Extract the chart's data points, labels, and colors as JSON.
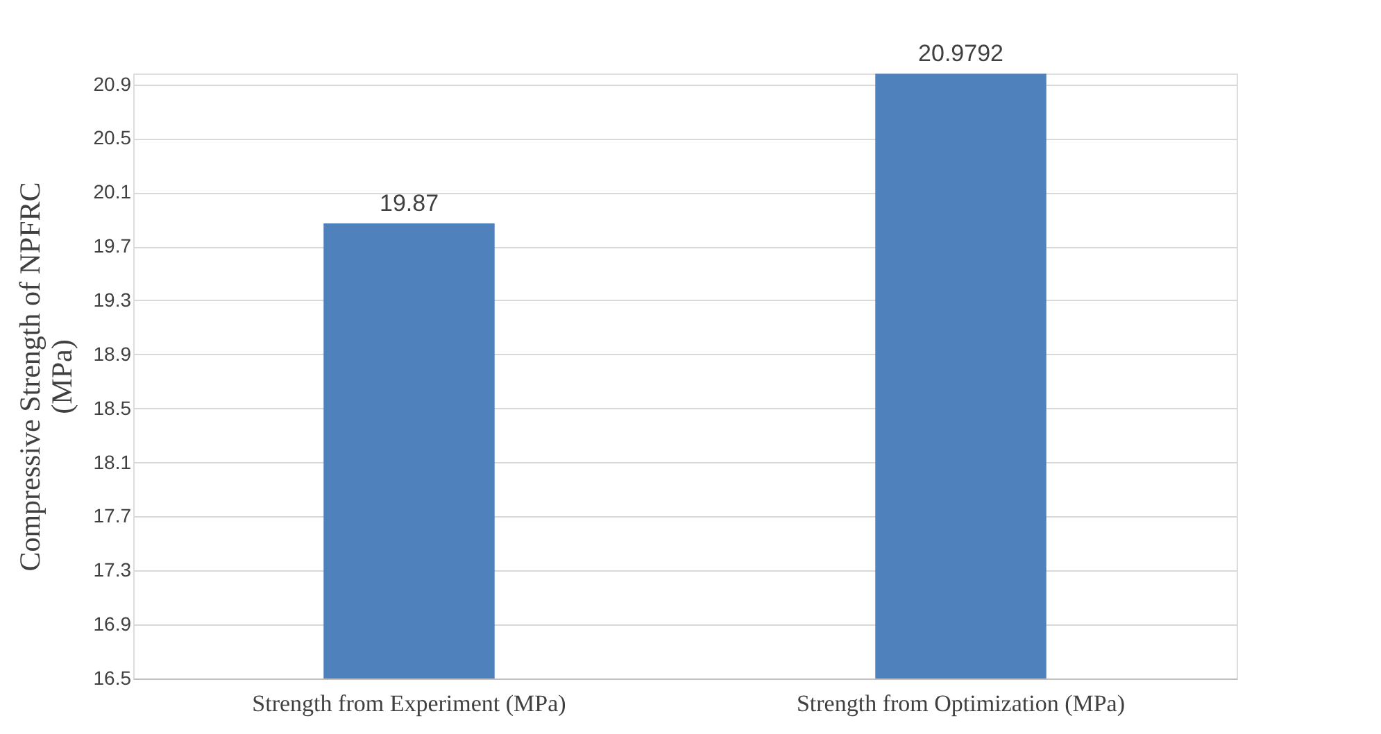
{
  "chart_data": {
    "type": "bar",
    "ylabel": "Compressive Strength of NPFRC (MPa)",
    "categories": [
      "Strength from Experiment (MPa)",
      "Strength from Optimization (MPa)"
    ],
    "values": [
      19.87,
      20.9792
    ],
    "color": "#4f81bd",
    "ylim": [
      16.5,
      20.98
    ],
    "yticks": [
      16.5,
      16.9,
      17.3,
      17.7,
      18.1,
      18.5,
      18.9,
      19.3,
      19.7,
      20.1,
      20.5,
      20.9
    ],
    "grid": "y",
    "data_labels": true
  }
}
